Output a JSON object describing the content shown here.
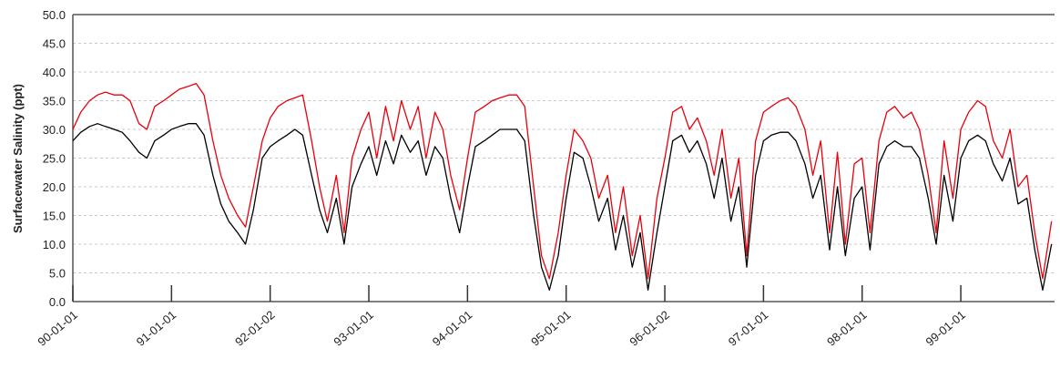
{
  "chart_data": {
    "type": "line",
    "y_label": "Surfacewater Salinity (ppt)",
    "x": [
      1990,
      1990.08,
      1990.17,
      1990.25,
      1990.33,
      1990.42,
      1990.5,
      1990.58,
      1990.67,
      1990.75,
      1990.83,
      1990.92,
      1991,
      1991.08,
      1991.17,
      1991.25,
      1991.33,
      1991.42,
      1991.5,
      1991.58,
      1991.67,
      1991.75,
      1991.83,
      1991.92,
      1992,
      1992.08,
      1992.17,
      1992.25,
      1992.33,
      1992.42,
      1992.5,
      1992.58,
      1992.67,
      1992.75,
      1992.83,
      1992.92,
      1993,
      1993.08,
      1993.17,
      1993.25,
      1993.33,
      1993.42,
      1993.5,
      1993.58,
      1993.67,
      1993.75,
      1993.83,
      1993.92,
      1994,
      1994.08,
      1994.17,
      1994.25,
      1994.33,
      1994.42,
      1994.5,
      1994.58,
      1994.67,
      1994.75,
      1994.83,
      1994.92,
      1995,
      1995.08,
      1995.17,
      1995.25,
      1995.33,
      1995.42,
      1995.5,
      1995.58,
      1995.67,
      1995.75,
      1995.83,
      1995.92,
      1996,
      1996.08,
      1996.17,
      1996.25,
      1996.33,
      1996.42,
      1996.5,
      1996.58,
      1996.67,
      1996.75,
      1996.83,
      1996.92,
      1997,
      1997.08,
      1997.17,
      1997.25,
      1997.33,
      1997.42,
      1997.5,
      1997.58,
      1997.67,
      1997.75,
      1997.83,
      1997.92,
      1998,
      1998.08,
      1998.17,
      1998.25,
      1998.33,
      1998.42,
      1998.5,
      1998.58,
      1998.67,
      1998.75,
      1998.83,
      1998.92,
      1999,
      1999.08,
      1999.17,
      1999.25,
      1999.33,
      1999.42,
      1999.5,
      1999.58,
      1999.67,
      1999.75,
      1999.83,
      1999.92
    ],
    "series": [
      {
        "color": "#000000",
        "values": [
          28,
          29.5,
          30.5,
          31,
          30.5,
          30,
          29.5,
          28,
          26,
          25,
          28,
          29,
          30,
          30.5,
          31,
          31,
          29,
          22,
          17,
          14,
          12,
          10,
          16,
          25,
          27,
          28,
          29,
          30,
          29,
          22,
          16,
          12,
          18,
          10,
          20,
          24,
          27,
          22,
          28,
          24,
          29,
          26,
          28,
          22,
          27,
          25,
          18,
          12,
          20,
          27,
          28,
          29,
          30,
          30,
          30,
          28,
          15,
          6,
          2,
          8,
          18,
          26,
          25,
          20,
          14,
          18,
          9,
          15,
          6,
          12,
          2,
          12,
          20,
          28,
          29,
          26,
          28,
          24,
          18,
          25,
          14,
          20,
          6,
          22,
          28,
          29,
          29.5,
          29.5,
          28,
          24,
          18,
          22,
          9,
          20,
          8,
          18,
          20,
          9,
          24,
          27,
          28,
          27,
          27,
          25,
          18,
          10,
          22,
          14,
          25,
          28,
          29,
          28,
          24,
          21,
          25,
          17,
          18,
          9,
          2,
          10
        ]
      },
      {
        "color": "#e8000b",
        "values": [
          30,
          33,
          35,
          36,
          36.5,
          36,
          36,
          35,
          31,
          30,
          34,
          35,
          36,
          37,
          37.5,
          38,
          36,
          28,
          22,
          18,
          15,
          13,
          20,
          28,
          32,
          34,
          35,
          35.5,
          36,
          28,
          20,
          14,
          22,
          12,
          25,
          30,
          33,
          25,
          34,
          28,
          35,
          30,
          34,
          25,
          33,
          30,
          22,
          16,
          25,
          33,
          34,
          35,
          35.5,
          36,
          36,
          34,
          20,
          8,
          4,
          12,
          22,
          30,
          28,
          25,
          18,
          22,
          12,
          20,
          8,
          15,
          4,
          18,
          25,
          33,
          34,
          30,
          32,
          28,
          22,
          30,
          18,
          25,
          8,
          28,
          33,
          34,
          35,
          35.5,
          34,
          30,
          22,
          28,
          12,
          26,
          10,
          24,
          25,
          12,
          28,
          33,
          34,
          32,
          33,
          30,
          22,
          12,
          28,
          18,
          30,
          33,
          35,
          34,
          28,
          25,
          30,
          20,
          22,
          12,
          4,
          14
        ]
      }
    ],
    "xlim": [
      1990,
      1999.95
    ],
    "xticks": [
      {
        "value": 1990,
        "label": "90-01-01"
      },
      {
        "value": 1991,
        "label": "91-01-01"
      },
      {
        "value": 1992,
        "label": "92-01-02"
      },
      {
        "value": 1993,
        "label": "93-01-01"
      },
      {
        "value": 1994,
        "label": "94-01-01"
      },
      {
        "value": 1995,
        "label": "95-01-01"
      },
      {
        "value": 1996,
        "label": "96-01-02"
      },
      {
        "value": 1997,
        "label": "97-01-01"
      },
      {
        "value": 1998,
        "label": "98-01-01"
      },
      {
        "value": 1999,
        "label": "99-01-01"
      }
    ],
    "ylim": [
      0,
      50
    ],
    "yticks": [
      {
        "value": 0,
        "label": "0.0"
      },
      {
        "value": 5,
        "label": "5.0"
      },
      {
        "value": 10,
        "label": "10.0"
      },
      {
        "value": 15,
        "label": "15.0"
      },
      {
        "value": 20,
        "label": "20.0"
      },
      {
        "value": 25,
        "label": "25.0"
      },
      {
        "value": 30,
        "label": "30.0"
      },
      {
        "value": 35,
        "label": "35.0"
      },
      {
        "value": 40,
        "label": "40.0"
      },
      {
        "value": 45,
        "label": "45.0"
      },
      {
        "value": 50,
        "label": "50.0"
      }
    ],
    "grid": true
  }
}
